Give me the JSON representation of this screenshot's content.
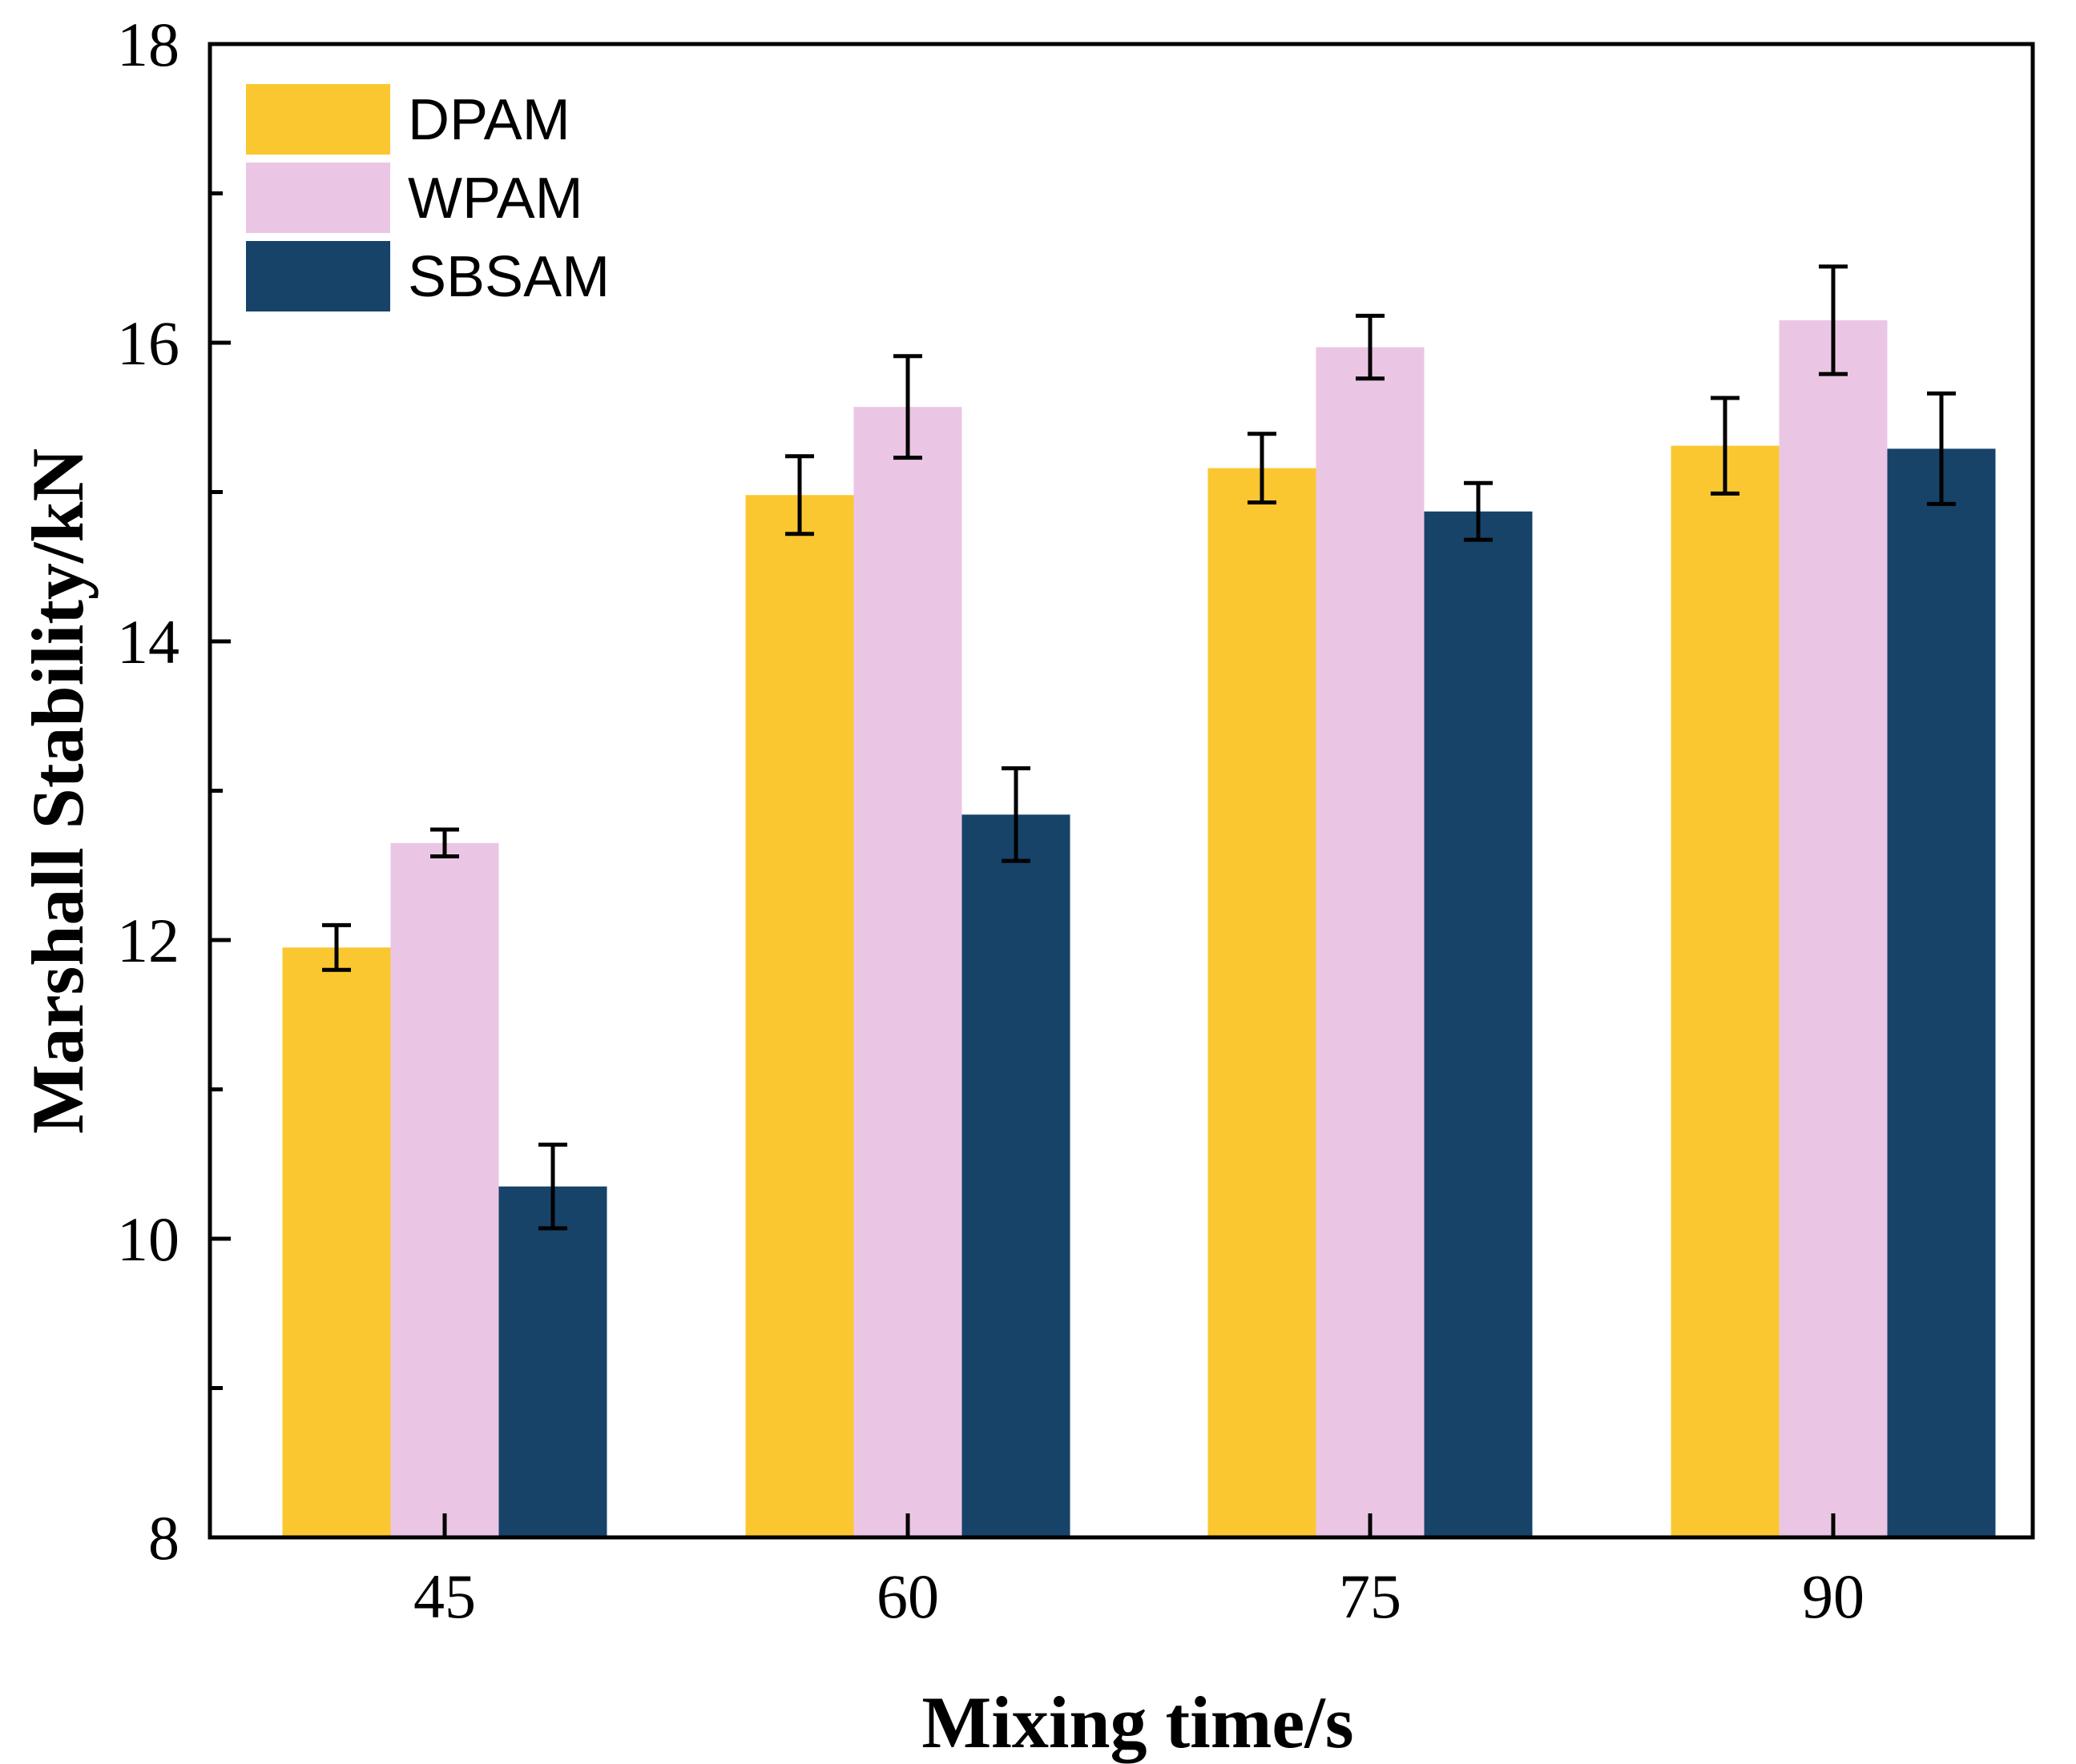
{
  "chart_data": {
    "type": "bar",
    "title": "",
    "xlabel": "Mixing time/s",
    "ylabel": "Marshall Stability/kN",
    "categories": [
      "45",
      "60",
      "75",
      "90"
    ],
    "ylim": [
      8,
      18
    ],
    "yticks": [
      8,
      10,
      12,
      14,
      16,
      18
    ],
    "grid": false,
    "legend_position": "top-left",
    "series": [
      {
        "name": "DPAM",
        "color": "#fbc730",
        "values": [
          11.95,
          14.98,
          15.16,
          15.31
        ],
        "errors": [
          0.15,
          0.26,
          0.23,
          0.32
        ]
      },
      {
        "name": "WPAM",
        "color": "#ebc6e4",
        "values": [
          12.65,
          15.57,
          15.97,
          16.15
        ],
        "errors": [
          0.09,
          0.34,
          0.21,
          0.36
        ]
      },
      {
        "name": "SBSAM",
        "color": "#174369",
        "values": [
          10.35,
          12.84,
          14.87,
          15.29
        ],
        "errors": [
          0.28,
          0.31,
          0.19,
          0.37
        ]
      }
    ]
  }
}
